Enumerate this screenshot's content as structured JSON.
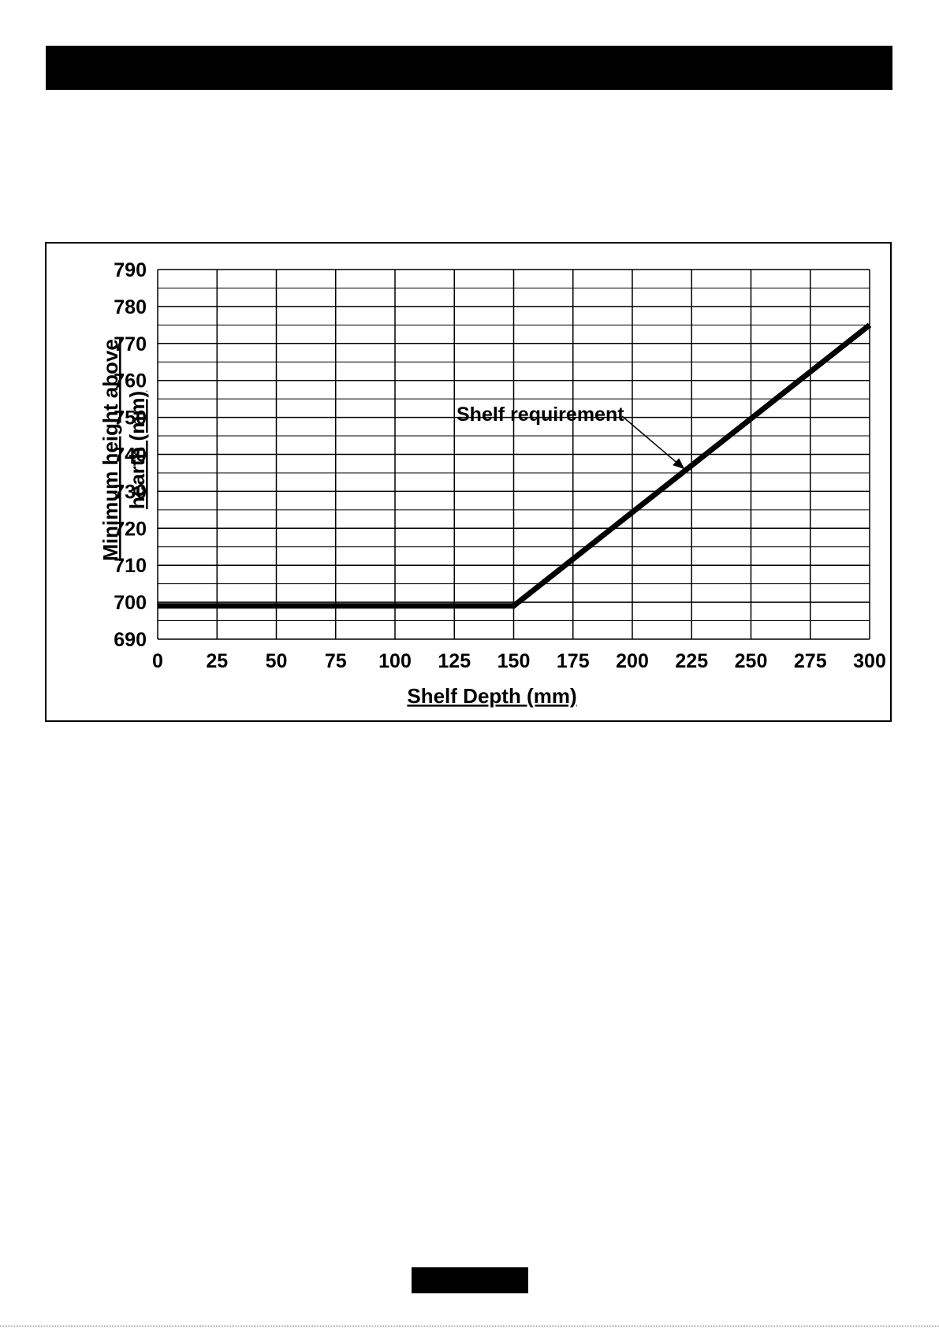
{
  "colors": {
    "ink": "#000000",
    "paper": "#ffffff"
  },
  "chart_data": {
    "type": "line",
    "title": "",
    "xlabel": "Shelf Depth (mm)",
    "ylabel_lines": [
      "Minimum height above",
      "hearth (mm)"
    ],
    "xlim": [
      0,
      300
    ],
    "ylim": [
      690,
      790
    ],
    "x_ticks": [
      0,
      25,
      50,
      75,
      100,
      125,
      150,
      175,
      200,
      225,
      250,
      275,
      300
    ],
    "y_ticks": [
      790,
      780,
      770,
      760,
      750,
      740,
      730,
      720,
      710,
      700,
      690
    ],
    "grid": true,
    "series": [
      {
        "name": "Shelf requirement",
        "x": [
          0,
          150,
          300
        ],
        "y": [
          699,
          699,
          775
        ]
      }
    ],
    "annotation": {
      "text": "Shelf requirement",
      "points_to": {
        "x": 222,
        "y": 736
      }
    }
  }
}
